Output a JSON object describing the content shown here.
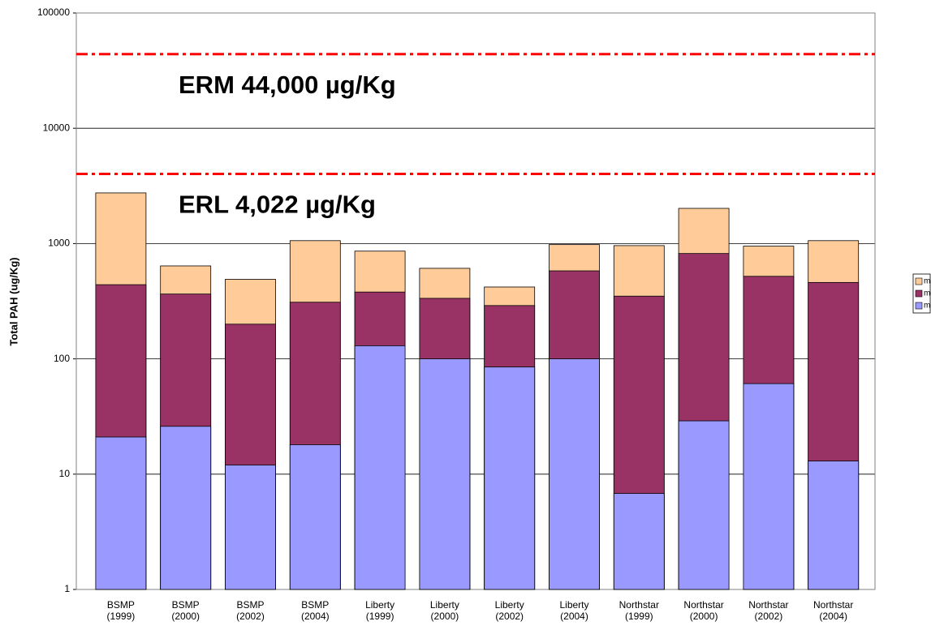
{
  "chart_data": {
    "type": "bar",
    "overlap": true,
    "log_scale": true,
    "grid": true,
    "legend_position": "right",
    "y_label": "Total PAH (ug/Kg)",
    "categories": [
      "BSMP\n(1999)",
      "BSMP\n(2000)",
      "BSMP\n(2002)",
      "BSMP\n(2004)",
      "Liberty\n(1999)",
      "Liberty\n(2000)",
      "Liberty\n(2002)",
      "Liberty\n(2004)",
      "Northstar\n(1999)",
      "Northstar\n(2000)",
      "Northstar\n(2002)",
      "Northstar\n(2004)"
    ],
    "series": [
      {
        "name": "min",
        "color": "#9999ff",
        "values": [
          21,
          26,
          12,
          18,
          130,
          100,
          85,
          100,
          6.8,
          29,
          61,
          13
        ]
      },
      {
        "name": "mean",
        "color": "#993366",
        "values": [
          440,
          365,
          200,
          310,
          380,
          335,
          290,
          580,
          350,
          820,
          520,
          460
        ]
      },
      {
        "name": "max",
        "color": "#ffcc99",
        "values": [
          2750,
          640,
          490,
          1060,
          860,
          610,
          420,
          980,
          960,
          2020,
          950,
          1060
        ]
      }
    ],
    "ylim": [
      1,
      100000
    ],
    "yticks": [
      1,
      10,
      100,
      1000,
      10000,
      100000
    ],
    "reference_lines": [
      {
        "value": 44000,
        "label": "ERM 44,000 µg/Kg",
        "color": "#ff0000"
      },
      {
        "value": 4022,
        "label": "ERL 4,022 µg/Kg",
        "color": "#ff0000"
      }
    ]
  }
}
